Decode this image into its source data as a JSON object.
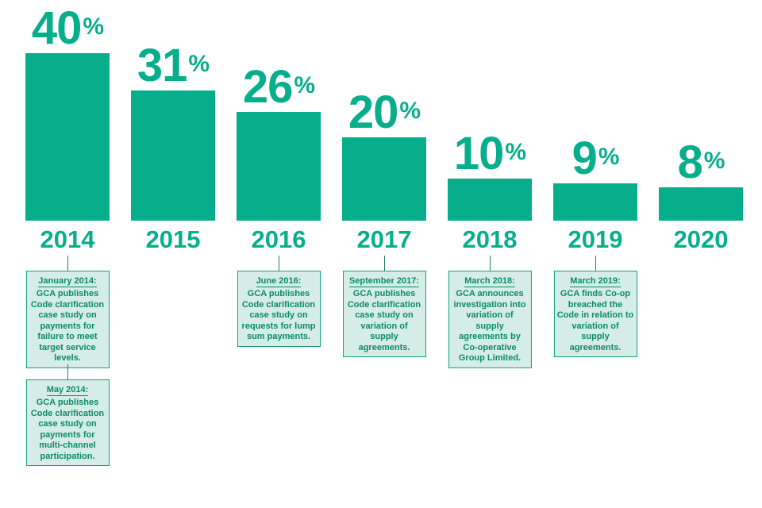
{
  "chart_data": {
    "type": "bar",
    "title": "",
    "xlabel": "",
    "ylabel": "",
    "ylim": [
      0,
      40
    ],
    "grid": false,
    "categories": [
      "2014",
      "2015",
      "2016",
      "2017",
      "2018",
      "2019",
      "2020"
    ],
    "values": [
      40,
      31,
      26,
      20,
      10,
      9,
      8
    ],
    "data_labels": [
      "40",
      "31",
      "26",
      "20",
      "10",
      "9",
      "8"
    ],
    "unit": "%",
    "bar_color": "#07ae8c",
    "annotations": [
      {
        "category": "2014",
        "date": "January 2014:",
        "text": "GCA publishes Code clarification case study on payments for failure to meet target service levels."
      },
      {
        "category": "2014",
        "date": "May 2014:",
        "text": "GCA publishes Code clarification case study on payments for multi-channel participation."
      },
      {
        "category": "2016",
        "date": "June 2016:",
        "text": "GCA publishes Code clarification case study on requests for lump sum payments."
      },
      {
        "category": "2017",
        "date": "September 2017:",
        "text": "GCA publishes Code clarification case study on variation of supply agreements."
      },
      {
        "category": "2018",
        "date": "March 2018:",
        "text": "GCA announces investigation into variation of supply agreements by Co-operative Group Limited."
      },
      {
        "category": "2019",
        "date": "March 2019:",
        "text": "GCA finds Co-op breached the Code in relation to variation of supply agreements."
      }
    ]
  }
}
